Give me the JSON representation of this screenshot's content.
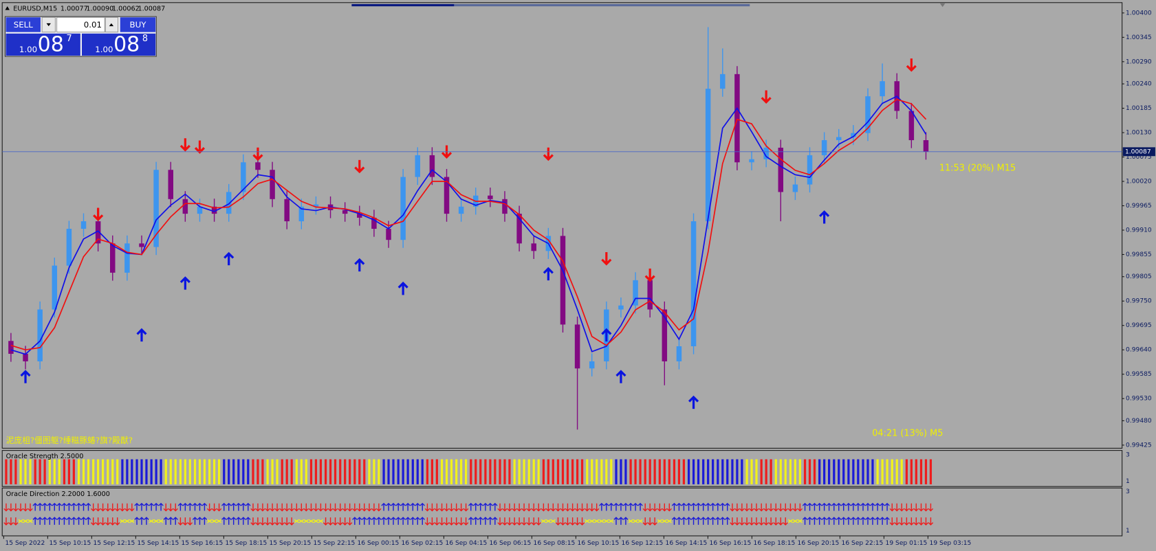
{
  "header": {
    "symbol": "EURUSD,M15",
    "quote": [
      "1.00077",
      "1.00090",
      "1.00062",
      "1.00087"
    ]
  },
  "trade_panel": {
    "sell": "SELL",
    "buy": "BUY",
    "lot": "0.01",
    "sell_price": {
      "big": "1.00",
      "pips": "08",
      "point": "7"
    },
    "buy_price": {
      "big": "1.00",
      "pips": "08",
      "point": "8"
    }
  },
  "chart_data": {
    "type": "candlestick",
    "open": [
      0.9966,
      0.99631,
      0.99614,
      0.99731,
      0.9983,
      0.99913,
      0.9993,
      0.9988,
      0.99814,
      0.9988,
      0.99872,
      1.00046,
      0.9998,
      0.99947,
      0.99963,
      0.99947,
      0.99996,
      1.00063,
      1.00046,
      0.9998,
      0.9993,
      0.99963,
      0.99968,
      0.99955,
      0.99947,
      0.99938,
      0.99913,
      0.99888,
      1.0003,
      1.00079,
      1.0003,
      0.99947,
      0.99963,
      0.99988,
      0.9998,
      0.99947,
      0.9988,
      0.99863,
      0.99897,
      0.99697,
      0.99598,
      0.99614,
      0.99731,
      0.9974,
      0.99797,
      0.99731,
      0.99614,
      0.99648,
      0.9993,
      1.00229,
      1.00262,
      1.00063,
      1.0007,
      1.00096,
      0.99996,
      1.00013,
      1.00079,
      1.00113,
      1.0012,
      1.00129,
      1.00212,
      1.00246,
      1.00179,
      1.00113
    ],
    "high": [
      0.99678,
      0.99649,
      0.99749,
      0.99848,
      0.99931,
      0.99948,
      0.99948,
      0.99898,
      0.99898,
      0.99898,
      1.00064,
      1.00064,
      0.99998,
      0.99981,
      0.99981,
      1.00014,
      1.00081,
      1.00081,
      1.00064,
      0.99998,
      0.99981,
      0.99986,
      0.99986,
      0.99973,
      0.99965,
      0.99956,
      0.99931,
      1.00048,
      1.00097,
      1.00097,
      1.00048,
      0.99981,
      1.00006,
      1.00006,
      0.99998,
      0.99965,
      0.99898,
      0.99915,
      0.99915,
      0.99715,
      0.99632,
      0.99749,
      0.99758,
      0.99815,
      0.99815,
      0.99749,
      0.99666,
      0.99948,
      1.00368,
      1.0032,
      1.0028,
      1.00088,
      1.00114,
      1.00114,
      1.00031,
      1.00097,
      1.00131,
      1.00138,
      1.00147,
      1.0023,
      1.00286,
      1.00264,
      1.00197,
      1.00131
    ],
    "low": [
      0.99613,
      0.99596,
      0.99596,
      0.99713,
      0.99812,
      0.99895,
      0.99862,
      0.99796,
      0.99796,
      0.99854,
      0.99854,
      0.99962,
      0.99929,
      0.99929,
      0.99929,
      0.99929,
      0.99978,
      1.00028,
      0.99962,
      0.99912,
      0.99912,
      0.99945,
      0.99937,
      0.99929,
      0.9992,
      0.99895,
      0.9987,
      0.9987,
      1.00012,
      1.00012,
      0.99929,
      0.99929,
      0.99945,
      0.99962,
      0.99929,
      0.99862,
      0.99845,
      0.99845,
      0.99679,
      0.9946,
      0.9958,
      0.99596,
      0.99713,
      0.99722,
      0.99713,
      0.9956,
      0.99596,
      0.9963,
      0.99912,
      1.00211,
      1.00045,
      1.00045,
      1.00052,
      0.9993,
      0.99978,
      0.99995,
      1.00061,
      1.00095,
      1.00102,
      1.00111,
      1.00194,
      1.00161,
      1.00095,
      1.00069
    ],
    "close": [
      0.99631,
      0.99614,
      0.99731,
      0.9983,
      0.99913,
      0.9993,
      0.9988,
      0.99814,
      0.9988,
      0.99872,
      1.00046,
      0.9998,
      0.99947,
      0.99963,
      0.99947,
      0.99996,
      1.00063,
      1.00046,
      0.9998,
      0.9993,
      0.99963,
      0.99968,
      0.99955,
      0.99947,
      0.99938,
      0.99913,
      0.99888,
      1.0003,
      1.00079,
      1.0003,
      0.99947,
      0.99963,
      0.99988,
      0.9998,
      0.99947,
      0.9988,
      0.99863,
      0.99897,
      0.99697,
      0.99598,
      0.99614,
      0.99731,
      0.9974,
      0.99797,
      0.99731,
      0.99614,
      0.99648,
      0.9993,
      1.00229,
      1.00262,
      1.00063,
      1.0007,
      1.00096,
      0.99996,
      1.00013,
      1.00079,
      1.00113,
      1.0012,
      1.00129,
      1.00212,
      1.00246,
      1.00179,
      1.00113,
      1.00087
    ],
    "colors": {
      "up": "#3d95ee",
      "down": "#820a82"
    },
    "ma_fast": {
      "color": "#1010e8",
      "values": [
        0.9964,
        0.9963,
        0.9966,
        0.99725,
        0.99825,
        0.9989,
        0.99908,
        0.99875,
        0.99858,
        0.99855,
        0.99933,
        0.99966,
        0.99991,
        0.99963,
        0.99952,
        0.99969,
        1.00002,
        1.00035,
        1.0003,
        0.99985,
        0.99958,
        0.99954,
        0.99962,
        0.99957,
        0.99947,
        0.99933,
        0.99913,
        0.99944,
        0.99999,
        1.00046,
        1.00019,
        0.9998,
        0.99966,
        0.99977,
        0.99972,
        0.99936,
        0.99897,
        0.9988,
        0.99819,
        0.99731,
        0.99636,
        0.99648,
        0.99695,
        0.99756,
        0.99756,
        0.99714,
        0.99664,
        0.99731,
        0.99936,
        1.0014,
        1.00185,
        1.00132,
        1.00076,
        1.00054,
        1.00035,
        1.00029,
        1.00068,
        1.00104,
        1.00121,
        1.00154,
        1.00196,
        1.00212,
        1.00179,
        1.00126
      ]
    },
    "ma_slow": {
      "color": "#f01010",
      "values": [
        0.9965,
        0.9964,
        0.99645,
        0.9969,
        0.9977,
        0.9985,
        0.9989,
        0.9988,
        0.9986,
        0.99855,
        0.999,
        0.9994,
        0.9997,
        0.9997,
        0.9996,
        0.99962,
        0.99985,
        1.00015,
        1.00025,
        1.0,
        0.99975,
        0.99962,
        0.9996,
        0.99958,
        0.9995,
        0.99938,
        0.9992,
        0.9993,
        0.99975,
        1.0002,
        1.0002,
        0.9999,
        0.99975,
        0.99975,
        0.9997,
        0.99945,
        0.9991,
        0.99888,
        0.9984,
        0.9976,
        0.9967,
        0.9965,
        0.9968,
        0.9973,
        0.9975,
        0.99725,
        0.99685,
        0.9971,
        0.9986,
        1.0006,
        1.0016,
        1.0015,
        1.001,
        1.0007,
        1.00045,
        1.00035,
        1.0006,
        1.0009,
        1.0011,
        1.0014,
        1.0018,
        1.00205,
        1.00195,
        1.0016
      ]
    },
    "up_arrows": {
      "color": "#0a14e0",
      "x": [
        1,
        9,
        12,
        15,
        24,
        27,
        37,
        41,
        42,
        47,
        56
      ],
      "y": [
        0.99578,
        0.99672,
        0.99789,
        0.99844,
        0.9983,
        0.99777,
        0.9981,
        0.99672,
        0.99578,
        0.9952,
        0.99938
      ]
    },
    "down_arrows": {
      "color": "#f01010",
      "x": [
        6,
        12,
        13,
        17,
        24,
        30,
        37,
        41,
        44,
        52,
        62
      ],
      "y": [
        0.99947,
        1.00104,
        1.00099,
        1.00083,
        1.00055,
        1.00088,
        1.00083,
        0.99847,
        0.9981,
        1.00212,
        1.00284
      ]
    },
    "ylim": [
      0.99418,
      1.0042
    ],
    "yticks": [
      {
        "value": 1.004,
        "label": "1.00400"
      },
      1.00345,
      {
        "value": 1.0029,
        "label": "1.00290"
      },
      {
        "value": 1.0024,
        "label": "1.00240"
      },
      1.00185,
      {
        "value": 1.0013,
        "label": "1.00130"
      },
      1.00075,
      {
        "value": 1.0002,
        "label": "1.00020"
      },
      0.99965,
      {
        "value": 0.9991,
        "label": "0.99910"
      },
      0.99855,
      0.99805,
      {
        "value": 0.9975,
        "label": "0.99750"
      },
      0.99695,
      {
        "value": 0.9964,
        "label": "0.99640"
      },
      0.99585,
      {
        "value": 0.9953,
        "label": "0.99530"
      },
      {
        "value": 0.9948,
        "label": "0.99480"
      },
      0.99425
    ],
    "current_price": 1.00087,
    "timer_labels": [
      "11:53 (20%) M15",
      "04:21 (13%) M5"
    ],
    "comment": "泥庞柤?僵图躯?缍糍豚蝽?旗?殿猷?",
    "time_labels": [
      "15 Sep 2022",
      "15 Sep 10:15",
      "15 Sep 12:15",
      "15 Sep 14:15",
      "15 Sep 16:15",
      "15 Sep 18:15",
      "15 Sep 20:15",
      "15 Sep 22:15",
      "16 Sep 00:15",
      "16 Sep 02:15",
      "16 Sep 04:15",
      "16 Sep 06:15",
      "16 Sep 08:15",
      "16 Sep 10:15",
      "16 Sep 12:15",
      "16 Sep 14:15",
      "16 Sep 16:15",
      "16 Sep 18:15",
      "16 Sep 20:15",
      "16 Sep 22:15",
      "19 Sep 01:15",
      "19 Sep 03:15"
    ]
  },
  "indicators": [
    {
      "title": "Oracle Strength 2.5000",
      "axis": [
        3,
        1
      ],
      "palette": {
        "r": "#ee1c1c",
        "y": "#f2f21a",
        "b": "#1a1ad8"
      },
      "bars": [
        "r",
        "y",
        "r",
        "y",
        "r",
        "y",
        "y",
        "y",
        "b",
        "b",
        "b",
        "y",
        "y",
        "y",
        "y",
        "b",
        "b",
        "r",
        "y",
        "r",
        "y",
        "r",
        "r",
        "r",
        "r",
        "y",
        "b",
        "b",
        "b",
        "r",
        "y",
        "y",
        "r",
        "r",
        "r",
        "y",
        "y",
        "r",
        "r",
        "r",
        "y",
        "y",
        "b",
        "r",
        "r",
        "r",
        "r",
        "b",
        "b",
        "b",
        "b",
        "y",
        "r",
        "y",
        "y",
        "r",
        "b",
        "b",
        "b",
        "b",
        "y",
        "y",
        "r",
        "r"
      ]
    },
    {
      "title": "Oracle Direction 2.2000 1.6000",
      "axis": [
        3,
        1
      ],
      "palette": {
        "u": "#1a1ad8",
        "d": "#ee1c1c",
        "x": "#f2f21a"
      },
      "rows": [
        [
          "d",
          "d",
          "u",
          "u",
          "u",
          "u",
          "d",
          "d",
          "d",
          "u",
          "u",
          "d",
          "u",
          "u",
          "d",
          "u",
          "u",
          "d",
          "d",
          "d",
          "d",
          "d",
          "d",
          "d",
          "d",
          "d",
          "u",
          "u",
          "u",
          "d",
          "d",
          "d",
          "u",
          "u",
          "d",
          "d",
          "d",
          "d",
          "d",
          "d",
          "d",
          "u",
          "u",
          "u",
          "d",
          "d",
          "u",
          "u",
          "u",
          "u",
          "d",
          "d",
          "d",
          "d",
          "d",
          "u",
          "u",
          "u",
          "u",
          "u",
          "u",
          "d",
          "d",
          "d"
        ],
        [
          "d",
          "x",
          "u",
          "u",
          "u",
          "u",
          "d",
          "d",
          "x",
          "u",
          "x",
          "u",
          "d",
          "u",
          "x",
          "u",
          "u",
          "d",
          "d",
          "d",
          "x",
          "x",
          "d",
          "d",
          "u",
          "u",
          "u",
          "u",
          "u",
          "d",
          "d",
          "d",
          "u",
          "u",
          "d",
          "d",
          "d",
          "x",
          "d",
          "d",
          "x",
          "x",
          "u",
          "x",
          "d",
          "x",
          "u",
          "u",
          "u",
          "u",
          "d",
          "d",
          "d",
          "d",
          "x",
          "u",
          "u",
          "u",
          "u",
          "u",
          "u",
          "d",
          "d",
          "d"
        ]
      ]
    }
  ]
}
